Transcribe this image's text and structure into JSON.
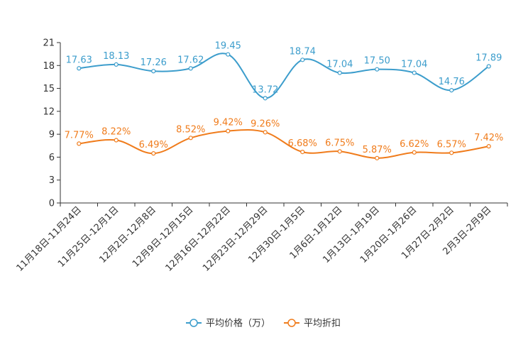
{
  "chart_data": {
    "type": "line",
    "title": "",
    "xlabel": "",
    "ylabel": "",
    "ylim": [
      0,
      21
    ],
    "yticks": [
      0,
      3,
      6,
      9,
      12,
      15,
      18,
      21
    ],
    "grid": false,
    "legend_position": "bottom-center",
    "categories": [
      "11月18日-11月24日",
      "11月25日-12月1日",
      "12月2日-12月8日",
      "12月9日-12月15日",
      "12月16日-12月22日",
      "12月23日-12月29日",
      "12月30日-1月5日",
      "1月6日-1月12日",
      "1月13日-1月19日",
      "1月20日-1月26日",
      "1月27日-2月2日",
      "2月3日-2月9日"
    ],
    "series": [
      {
        "name": "平均价格（万）",
        "color": "#3c9dcc",
        "values": [
          17.63,
          18.13,
          17.26,
          17.62,
          19.45,
          13.72,
          18.74,
          17.04,
          17.5,
          17.04,
          14.76,
          17.89
        ],
        "labels": [
          "17.63",
          "18.13",
          "17.26",
          "17.62",
          "19.45",
          "13.72",
          "18.74",
          "17.04",
          "17.50",
          "17.04",
          "14.76",
          "17.89"
        ]
      },
      {
        "name": "平均折扣",
        "color": "#f07c1c",
        "values": [
          7.77,
          8.22,
          6.49,
          8.52,
          9.42,
          9.26,
          6.68,
          6.75,
          5.87,
          6.62,
          6.57,
          7.42
        ],
        "labels": [
          "7.77%",
          "8.22%",
          "6.49%",
          "8.52%",
          "9.42%",
          "9.26%",
          "6.68%",
          "6.75%",
          "5.87%",
          "6.62%",
          "6.57%",
          "7.42%"
        ]
      }
    ]
  }
}
